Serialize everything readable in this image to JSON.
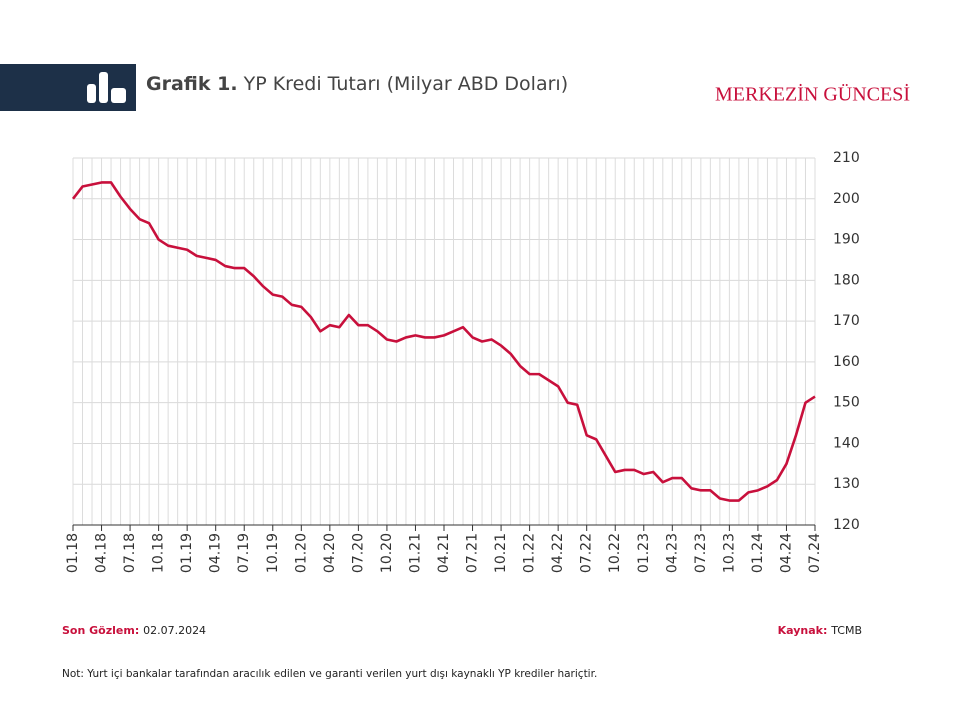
{
  "header": {
    "title_prefix": "Grafik 1.",
    "title": "YP Kredi Tutarı (Milyar ABD Doları)",
    "brand": "MERKEZİN GÜNCESİ"
  },
  "footer": {
    "observation_label": "Son Gözlem:",
    "observation": "02.07.2024",
    "source_label": "Kaynak:",
    "source": "TCMB",
    "note": "Not: Yurt içi bankalar tarafından aracılık edilen ve garanti verilen yurt dışı kaynaklı YP krediler hariçtir."
  },
  "chart_data": {
    "type": "line",
    "color": "#c8103c",
    "grid": true,
    "y_axis_side": "right",
    "categories": [
      "01.18",
      null,
      null,
      "04.18",
      null,
      null,
      "07.18",
      null,
      null,
      "10.18",
      null,
      null,
      "01.19",
      null,
      null,
      "04.19",
      null,
      null,
      "07.19",
      null,
      null,
      "10.19",
      null,
      null,
      "01.20",
      null,
      null,
      "04.20",
      null,
      null,
      "07.20",
      null,
      null,
      "10.20",
      null,
      null,
      "01.21",
      null,
      null,
      "04.21",
      null,
      null,
      "07.21",
      null,
      null,
      "10.21",
      null,
      null,
      "01.22",
      null,
      null,
      "04.22",
      null,
      null,
      "07.22",
      null,
      null,
      "10.22",
      null,
      null,
      "01.23",
      null,
      null,
      "04.23",
      null,
      null,
      "07.23",
      null,
      null,
      "10.23",
      null,
      null,
      "01.24",
      null,
      null,
      "04.24",
      null,
      null,
      "07.24"
    ],
    "values": [
      200,
      203,
      203.5,
      204,
      204,
      200.5,
      197.5,
      195,
      194,
      190,
      188.5,
      188,
      187.5,
      186,
      185.5,
      185,
      183.5,
      183,
      183,
      181,
      178.5,
      176.5,
      176,
      174,
      173.5,
      171,
      167.5,
      169,
      168.5,
      171.5,
      169,
      169,
      167.5,
      165.5,
      165,
      166,
      166.5,
      166,
      166,
      166.5,
      167.5,
      168.5,
      166,
      165,
      165.5,
      164,
      162,
      159,
      157,
      157,
      155.5,
      154,
      150,
      149.5,
      142,
      141,
      137,
      133,
      133.5,
      133.5,
      132.5,
      133,
      130.5,
      131.5,
      131.5,
      129,
      128.5,
      128.5,
      126.5,
      126,
      126,
      128,
      128.5,
      129.5,
      131,
      135,
      142,
      150,
      151.5
    ],
    "ylim": [
      120,
      210
    ],
    "yticks": [
      120,
      130,
      140,
      150,
      160,
      170,
      180,
      190,
      200,
      210
    ]
  }
}
